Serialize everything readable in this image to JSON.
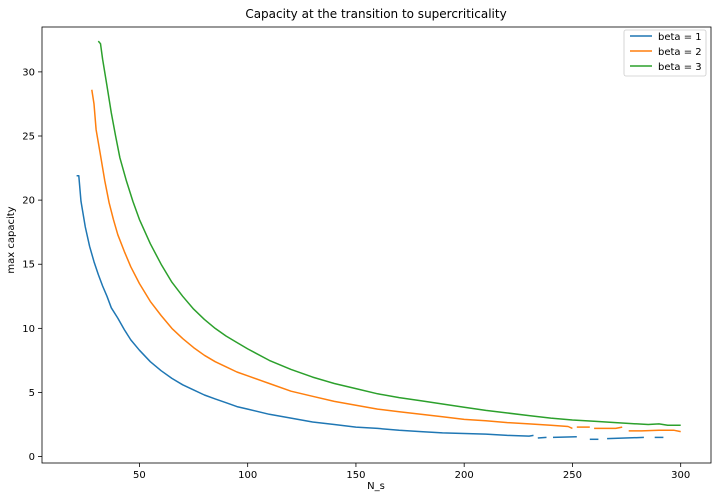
{
  "chart_data": {
    "type": "line",
    "title": "Capacity at the transition to supercriticality",
    "xlabel": "N_s",
    "ylabel": "max capacity",
    "xlim": [
      5,
      314
    ],
    "ylim": [
      -0.5,
      33.5
    ],
    "xticks": [
      50,
      100,
      150,
      200,
      250,
      300
    ],
    "yticks": [
      0,
      5,
      10,
      15,
      20,
      25,
      30
    ],
    "grid": false,
    "legend_position": "top-right",
    "series": [
      {
        "name": "beta = 1",
        "color": "#1f77b4",
        "segments": [
          [
            [
              21,
              21.9
            ],
            [
              22,
              21.9
            ],
            [
              23,
              19.9
            ],
            [
              25,
              17.9
            ],
            [
              27,
              16.4
            ],
            [
              29,
              15.2
            ],
            [
              31,
              14.2
            ],
            [
              33,
              13.3
            ],
            [
              35,
              12.5
            ],
            [
              37,
              11.6
            ],
            [
              40,
              10.8
            ],
            [
              43,
              9.9
            ],
            [
              46,
              9.1
            ],
            [
              50,
              8.3
            ],
            [
              55,
              7.4
            ],
            [
              60,
              6.7
            ],
            [
              65,
              6.1
            ],
            [
              70,
              5.6
            ],
            [
              75,
              5.2
            ],
            [
              80,
              4.8
            ],
            [
              85,
              4.5
            ],
            [
              90,
              4.2
            ],
            [
              95,
              3.9
            ],
            [
              100,
              3.7
            ],
            [
              110,
              3.3
            ],
            [
              120,
              3.0
            ],
            [
              130,
              2.7
            ],
            [
              140,
              2.5
            ],
            [
              150,
              2.3
            ],
            [
              160,
              2.2
            ],
            [
              170,
              2.05
            ],
            [
              180,
              1.95
            ],
            [
              190,
              1.85
            ],
            [
              200,
              1.8
            ],
            [
              210,
              1.75
            ],
            [
              220,
              1.65
            ],
            [
              230,
              1.6
            ],
            [
              232,
              1.65
            ]
          ],
          [
            [
              234,
              1.45
            ],
            [
              238,
              1.5
            ]
          ],
          [
            [
              241,
              1.5
            ],
            [
              252,
              1.55
            ]
          ],
          [
            [
              258,
              1.35
            ],
            [
              262,
              1.35
            ]
          ],
          [
            [
              266,
              1.4
            ],
            [
              283,
              1.5
            ]
          ],
          [
            [
              288,
              1.5
            ],
            [
              292,
              1.5
            ]
          ]
        ]
      },
      {
        "name": "beta = 2",
        "color": "#ff7f0e",
        "segments": [
          [
            [
              28,
              28.6
            ],
            [
              29,
              27.5
            ],
            [
              30,
              25.5
            ],
            [
              32,
              23.5
            ],
            [
              34,
              21.5
            ],
            [
              36,
              19.8
            ],
            [
              38,
              18.5
            ],
            [
              40,
              17.3
            ],
            [
              43,
              16.0
            ],
            [
              46,
              14.8
            ],
            [
              50,
              13.5
            ],
            [
              55,
              12.1
            ],
            [
              60,
              11.0
            ],
            [
              65,
              10.0
            ],
            [
              70,
              9.2
            ],
            [
              75,
              8.5
            ],
            [
              80,
              7.9
            ],
            [
              85,
              7.4
            ],
            [
              90,
              7.0
            ],
            [
              95,
              6.6
            ],
            [
              100,
              6.3
            ],
            [
              110,
              5.7
            ],
            [
              120,
              5.1
            ],
            [
              130,
              4.7
            ],
            [
              140,
              4.3
            ],
            [
              150,
              4.0
            ],
            [
              160,
              3.7
            ],
            [
              170,
              3.5
            ],
            [
              180,
              3.3
            ],
            [
              190,
              3.1
            ],
            [
              200,
              2.9
            ],
            [
              210,
              2.8
            ],
            [
              220,
              2.65
            ],
            [
              230,
              2.55
            ],
            [
              240,
              2.45
            ],
            [
              248,
              2.35
            ],
            [
              250,
              2.2
            ]
          ],
          [
            [
              252,
              2.3
            ],
            [
              258,
              2.3
            ]
          ],
          [
            [
              260,
              2.2
            ],
            [
              270,
              2.2
            ],
            [
              273,
              2.3
            ]
          ],
          [
            [
              276,
              2.0
            ],
            [
              282,
              2.0
            ],
            [
              290,
              2.05
            ],
            [
              297,
              2.05
            ],
            [
              300,
              1.95
            ]
          ]
        ]
      },
      {
        "name": "beta = 3",
        "color": "#2ca02c",
        "segments": [
          [
            [
              31,
              32.4
            ],
            [
              32,
              32.2
            ],
            [
              33,
              31.0
            ],
            [
              35,
              28.9
            ],
            [
              37,
              26.8
            ],
            [
              39,
              25.0
            ],
            [
              41,
              23.3
            ],
            [
              44,
              21.5
            ],
            [
              47,
              19.9
            ],
            [
              50,
              18.5
            ],
            [
              55,
              16.6
            ],
            [
              60,
              15.0
            ],
            [
              65,
              13.6
            ],
            [
              70,
              12.5
            ],
            [
              75,
              11.5
            ],
            [
              80,
              10.7
            ],
            [
              85,
              10.0
            ],
            [
              90,
              9.4
            ],
            [
              95,
              8.9
            ],
            [
              100,
              8.4
            ],
            [
              110,
              7.5
            ],
            [
              120,
              6.8
            ],
            [
              130,
              6.2
            ],
            [
              140,
              5.7
            ],
            [
              150,
              5.3
            ],
            [
              160,
              4.9
            ],
            [
              170,
              4.6
            ],
            [
              180,
              4.35
            ],
            [
              190,
              4.1
            ],
            [
              200,
              3.85
            ],
            [
              210,
              3.6
            ],
            [
              220,
              3.4
            ],
            [
              230,
              3.2
            ],
            [
              240,
              3.0
            ],
            [
              250,
              2.85
            ],
            [
              260,
              2.75
            ],
            [
              270,
              2.65
            ],
            [
              280,
              2.55
            ],
            [
              285,
              2.5
            ],
            [
              290,
              2.55
            ],
            [
              294,
              2.45
            ],
            [
              300,
              2.45
            ]
          ]
        ]
      }
    ]
  }
}
